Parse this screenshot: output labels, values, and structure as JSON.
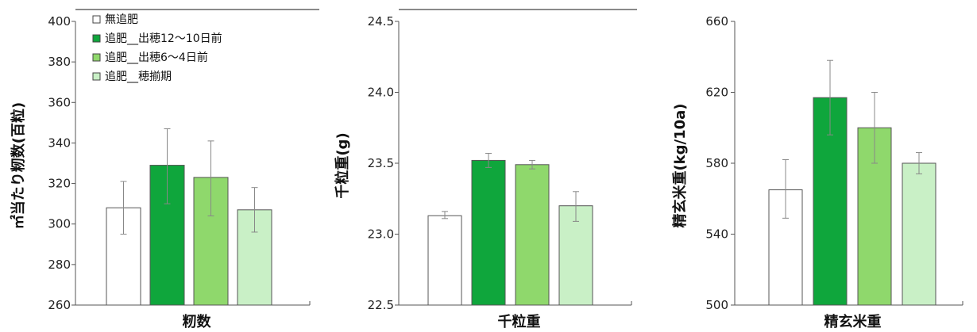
{
  "legend": {
    "entries": [
      "無追肥",
      "追肥__出穂12〜10日前",
      "追肥__出穂6〜4日前",
      "追肥__穂揃期"
    ],
    "colors": [
      "#ffffff",
      "#0fa63c",
      "#8fd86c",
      "#c9f0c6"
    ]
  },
  "chart_data": [
    {
      "type": "bar",
      "xlabel": "籾数",
      "ylabel": "㎡当たり籾数(百粒)",
      "ylim": [
        260,
        400
      ],
      "yticks": [
        260,
        280,
        300,
        320,
        340,
        360,
        380,
        400
      ],
      "series": [
        {
          "name": "無追肥",
          "value": 308,
          "error": [
            295,
            321
          ]
        },
        {
          "name": "追肥__出穂12〜10日前",
          "value": 329,
          "error": [
            310,
            347
          ]
        },
        {
          "name": "追肥__出穂6〜4日前",
          "value": 323,
          "error": [
            304,
            341
          ]
        },
        {
          "name": "追肥__穂揃期",
          "value": 307,
          "error": [
            296,
            318
          ]
        }
      ]
    },
    {
      "type": "bar",
      "xlabel": "千粒重",
      "ylabel": "千粒重(g)",
      "ylim": [
        22.5,
        24.5
      ],
      "yticks": [
        "22.5",
        "23.0",
        "23.5",
        "24.0",
        "24.5"
      ],
      "series": [
        {
          "name": "無追肥",
          "value": 23.13,
          "error": [
            23.11,
            23.16
          ]
        },
        {
          "name": "追肥__出穂12〜10日前",
          "value": 23.52,
          "error": [
            23.47,
            23.57
          ]
        },
        {
          "name": "追肥__出穂6〜4日前",
          "value": 23.49,
          "error": [
            23.46,
            23.52
          ]
        },
        {
          "name": "追肥__穂揃期",
          "value": 23.2,
          "error": [
            23.09,
            23.3
          ]
        }
      ]
    },
    {
      "type": "bar",
      "xlabel": "精玄米重",
      "ylabel": "精玄米重(kg/10a)",
      "ylim": [
        500,
        660
      ],
      "yticks": [
        500,
        540,
        580,
        620,
        660
      ],
      "series": [
        {
          "name": "無追肥",
          "value": 565,
          "error": [
            549,
            582
          ]
        },
        {
          "name": "追肥__出穂12〜10日前",
          "value": 617,
          "error": [
            596,
            638
          ]
        },
        {
          "name": "追肥__出穂6〜4日前",
          "value": 600,
          "error": [
            580,
            620
          ]
        },
        {
          "name": "追肥__穂揃期",
          "value": 580,
          "error": [
            574,
            586
          ]
        }
      ]
    }
  ]
}
